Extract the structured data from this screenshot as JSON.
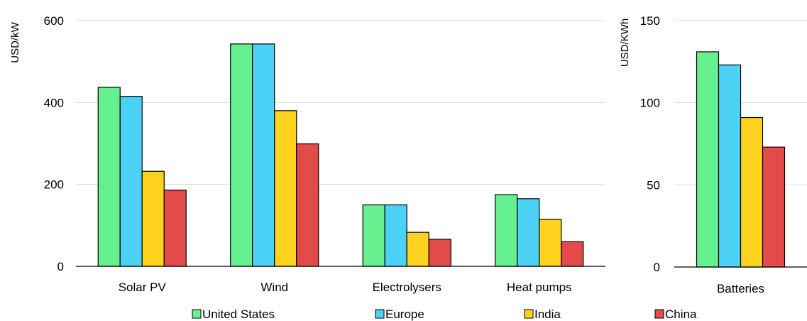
{
  "chart_data": [
    {
      "type": "bar",
      "title": "",
      "xlabel": "",
      "ylabel": "USD/kW",
      "ylim": [
        0,
        600
      ],
      "yticks": [
        "0",
        "200",
        "400",
        "600"
      ],
      "grid": true,
      "categories": [
        "Solar PV",
        "Wind",
        "Electrolysers",
        "Heat pumps"
      ],
      "series": [
        {
          "name": "United States",
          "color": "#66f08f",
          "values": [
            437,
            543,
            150,
            175
          ]
        },
        {
          "name": "Europe",
          "color": "#4dd2f7",
          "values": [
            415,
            543,
            150,
            165
          ]
        },
        {
          "name": "India",
          "color": "#ffd21e",
          "values": [
            232,
            380,
            83,
            115
          ]
        },
        {
          "name": "China",
          "color": "#e34a4a",
          "values": [
            186,
            299,
            66,
            60
          ]
        }
      ]
    },
    {
      "type": "bar",
      "title": "",
      "xlabel": "",
      "ylabel": "USD/KWh",
      "ylim": [
        0,
        150
      ],
      "yticks": [
        "0",
        "50",
        "100",
        "150"
      ],
      "grid": true,
      "categories": [
        "Batteries"
      ],
      "series": [
        {
          "name": "United States",
          "color": "#66f08f",
          "values": [
            131
          ]
        },
        {
          "name": "Europe",
          "color": "#4dd2f7",
          "values": [
            123
          ]
        },
        {
          "name": "India",
          "color": "#ffd21e",
          "values": [
            91
          ]
        },
        {
          "name": "China",
          "color": "#e34a4a",
          "values": [
            73
          ]
        }
      ]
    }
  ],
  "legend": {
    "position": "bottom",
    "items": [
      {
        "label": "United States",
        "color": "#66f08f"
      },
      {
        "label": "Europe",
        "color": "#4dd2f7"
      },
      {
        "label": "India",
        "color": "#ffd21e"
      },
      {
        "label": "China",
        "color": "#e34a4a"
      }
    ]
  }
}
